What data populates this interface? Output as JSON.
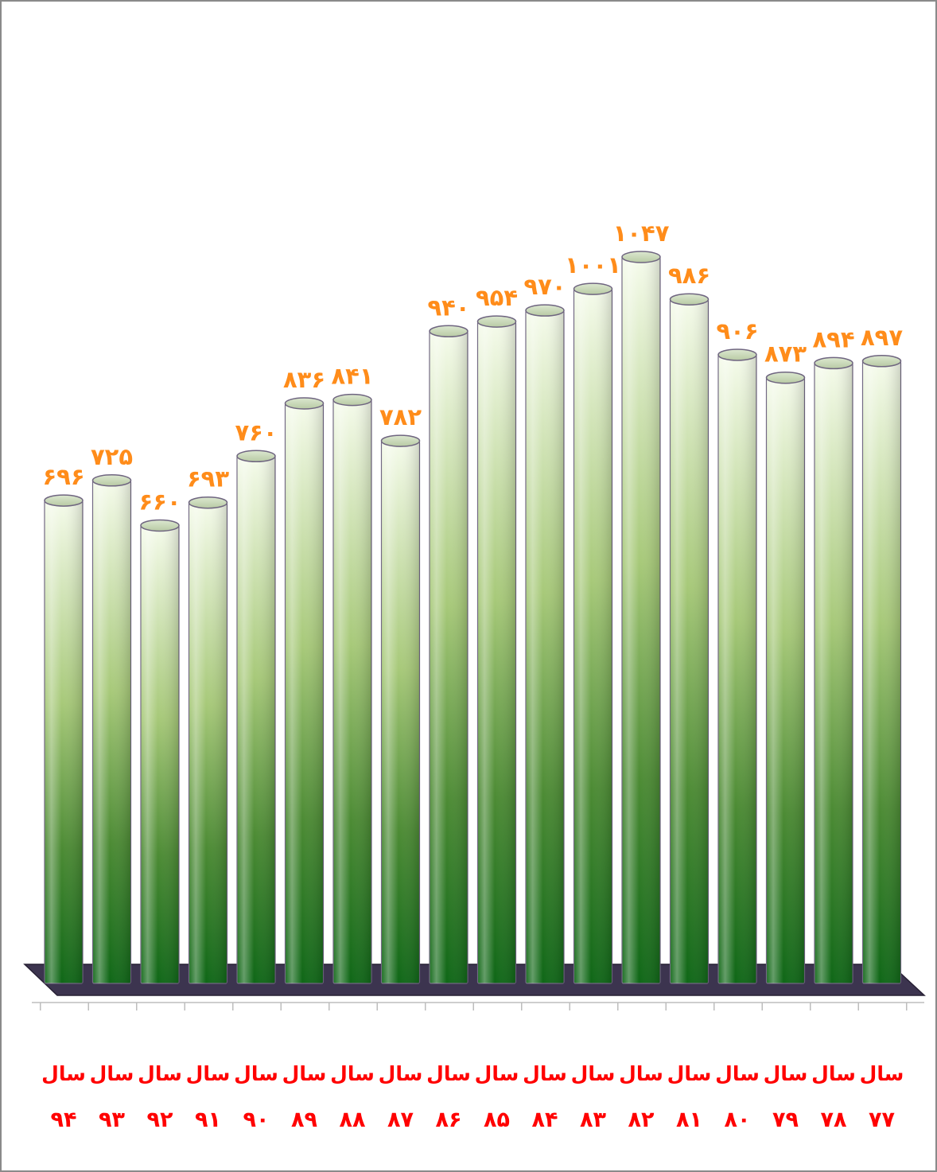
{
  "chart_data": {
    "type": "bar",
    "categories": [
      "۹۴",
      "۹۳",
      "۹۲",
      "۹۱",
      "۹۰",
      "۸۹",
      "۸۸",
      "۸۷",
      "۸۶",
      "۸۵",
      "۸۴",
      "۸۳",
      "۸۲",
      "۸۱",
      "۸۰",
      "۷۹",
      "۷۸",
      "۷۷"
    ],
    "category_prefix": "سال",
    "values": [
      696,
      725,
      660,
      693,
      760,
      836,
      841,
      782,
      940,
      954,
      970,
      1001,
      1047,
      986,
      906,
      873,
      894,
      897
    ],
    "value_labels": [
      "۶۹۶",
      "۷۲۵",
      "۶۶۰",
      "۶۹۳",
      "۷۶۰",
      "۸۳۶",
      "۸۴۱",
      "۷۸۲",
      "۹۴۰",
      "۹۵۴",
      "۹۷۰",
      "۱۰۰۱",
      "۱۰۴۷",
      "۹۸۶",
      "۹۰۶",
      "۸۷۳",
      "۸۹۴",
      "۸۹۷"
    ],
    "title": "",
    "xlabel": "",
    "ylabel": "",
    "ylim": [
      0,
      1047
    ],
    "grid": false,
    "legend": "none",
    "colors": {
      "bar_top": "#f4fbe9",
      "bar_mid": "#9cc46d",
      "bar_bottom": "#0b6a14",
      "base": "#3c344f",
      "value_label": "#ff8c1a",
      "category_label": "#ff0000",
      "frame": "#808080"
    }
  }
}
